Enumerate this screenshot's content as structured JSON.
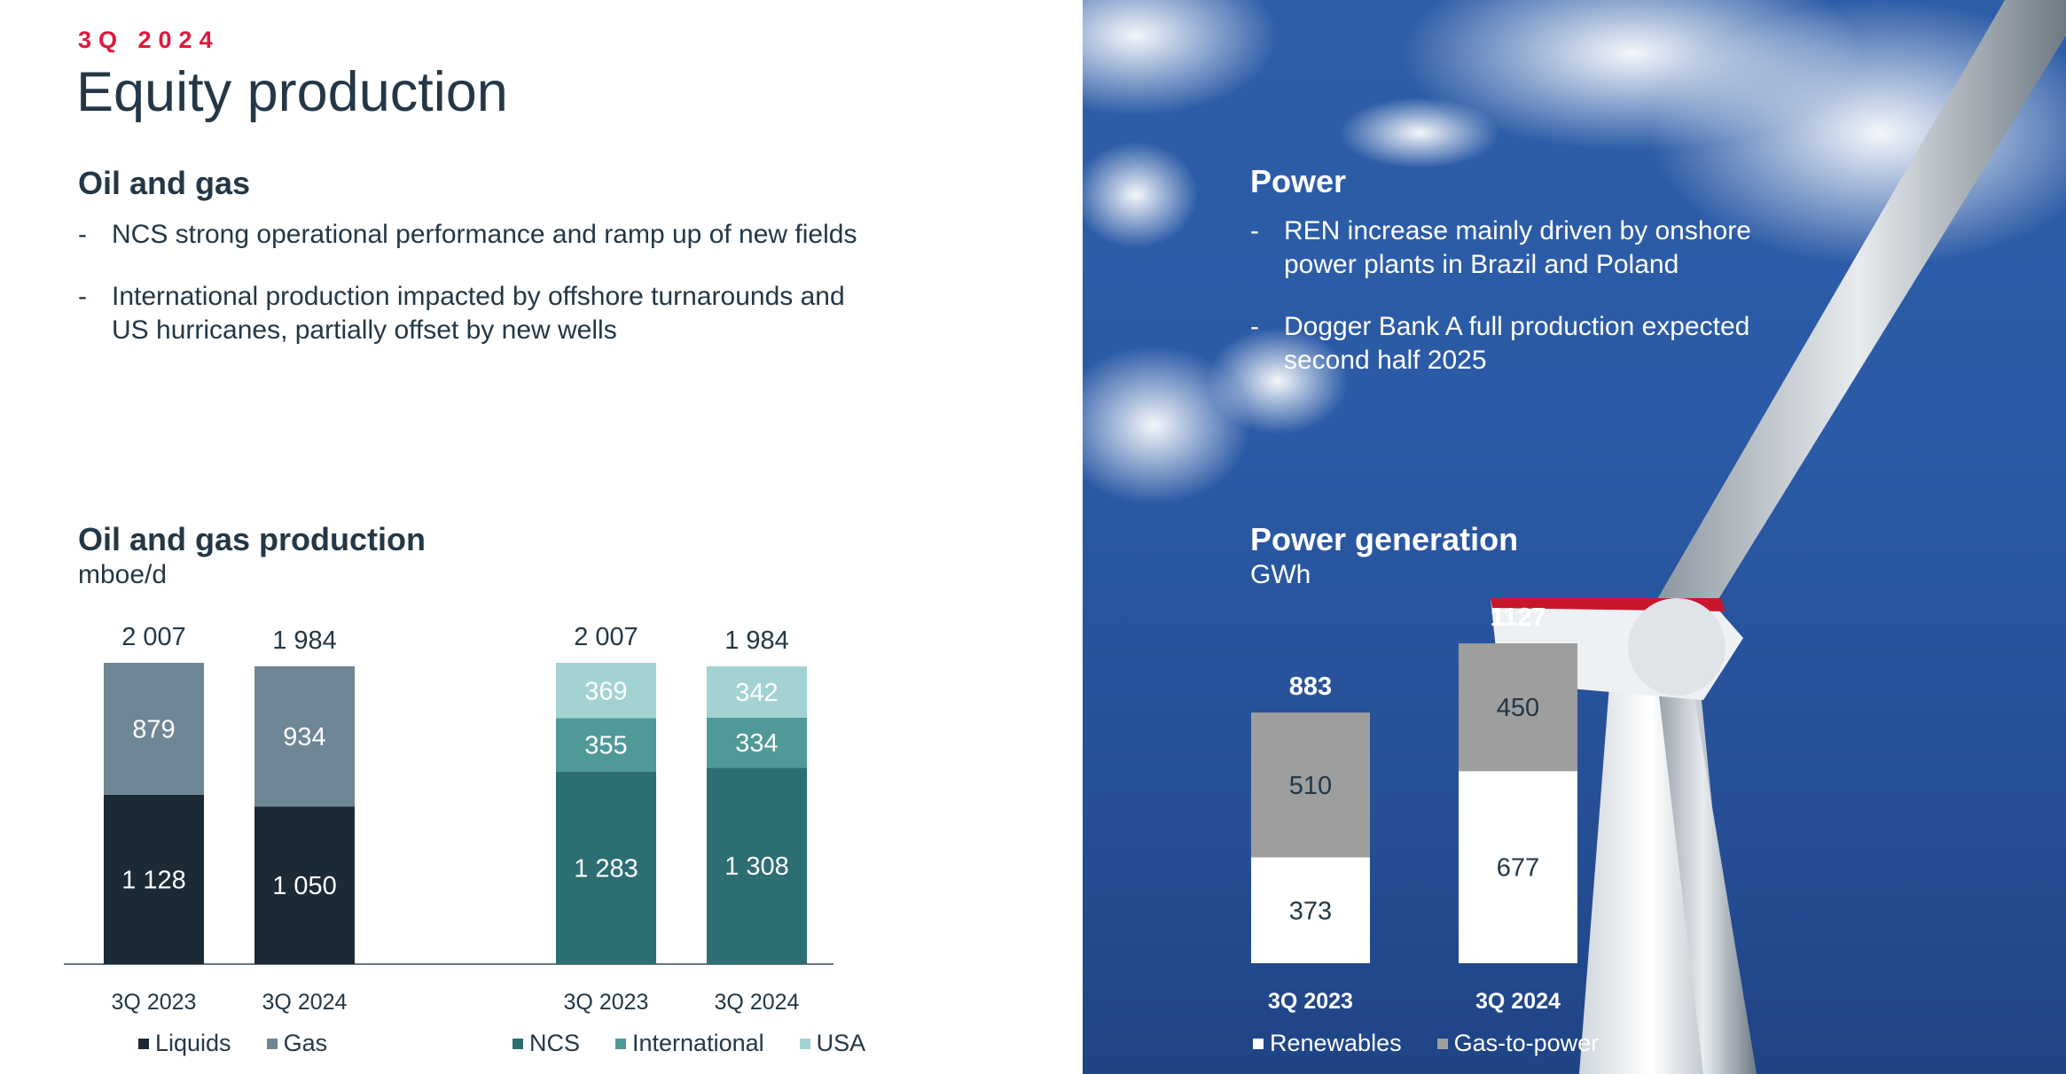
{
  "header": {
    "kicker": "3Q 2024",
    "title": "Equity production"
  },
  "oil_gas": {
    "heading": "Oil and gas",
    "bullets": [
      "NCS strong operational performance and ramp up of new fields",
      "International production impacted by offshore turnarounds and US hurricanes, partially offset by new wells"
    ]
  },
  "power": {
    "heading": "Power",
    "bullets": [
      "REN increase mainly driven by onshore power plants in Brazil and Poland",
      "Dogger Bank A full production expected second half 2025"
    ]
  },
  "colors": {
    "accent": "#e0163a",
    "liquids": "#1c2a36",
    "gas": "#6e8696",
    "ncs": "#2c6e72",
    "international": "#4f9999",
    "usa": "#a3d2d2",
    "renewables": "#ffffff",
    "gas_to_power": "#9e9e9e",
    "text_dark": "#243746"
  },
  "chart_data": [
    {
      "type": "bar",
      "stacked": true,
      "title": "Oil and gas production",
      "unit": "mboe/d",
      "categories": [
        "3Q 2023",
        "3Q 2024"
      ],
      "totals": [
        "2 007",
        "1 984"
      ],
      "series": [
        {
          "name": "Liquids",
          "values": [
            1128,
            1050
          ],
          "labels": [
            "1 128",
            "1 050"
          ]
        },
        {
          "name": "Gas",
          "values": [
            879,
            934
          ],
          "labels": [
            "879",
            "934"
          ]
        }
      ],
      "legend": [
        "Liquids",
        "Gas"
      ]
    },
    {
      "type": "bar",
      "stacked": true,
      "title": "",
      "categories": [
        "3Q 2023",
        "3Q 2024"
      ],
      "totals": [
        "2 007",
        "1 984"
      ],
      "series": [
        {
          "name": "NCS",
          "values": [
            1283,
            1308
          ],
          "labels": [
            "1 283",
            "1 308"
          ]
        },
        {
          "name": "International",
          "values": [
            355,
            334
          ],
          "labels": [
            "355",
            "334"
          ]
        },
        {
          "name": "USA",
          "values": [
            369,
            342
          ],
          "labels": [
            "369",
            "342"
          ]
        }
      ],
      "legend": [
        "NCS",
        "International",
        "USA"
      ]
    },
    {
      "type": "bar",
      "stacked": true,
      "title": "Power generation",
      "unit": "GWh",
      "categories": [
        "3Q 2023",
        "3Q 2024"
      ],
      "totals": [
        "883",
        "1127"
      ],
      "series": [
        {
          "name": "Renewables",
          "values": [
            373,
            677
          ],
          "labels": [
            "373",
            "677"
          ]
        },
        {
          "name": "Gas-to-power",
          "values": [
            510,
            450
          ],
          "labels": [
            "510",
            "450"
          ]
        }
      ],
      "legend": [
        "Renewables",
        "Gas-to-power"
      ]
    }
  ]
}
